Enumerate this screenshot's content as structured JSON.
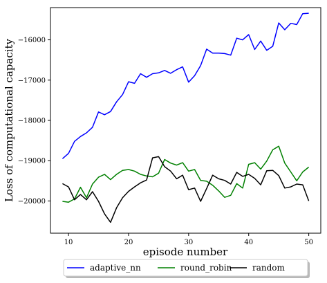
{
  "chart_data": {
    "type": "line",
    "title": "",
    "xlabel": "episode number",
    "ylabel": "Loss of computational capacity",
    "xlim": [
      7,
      52
    ],
    "ylim": [
      -20800,
      -15200
    ],
    "xticks": [
      10,
      20,
      30,
      40,
      50
    ],
    "yticks": [
      -20000,
      -19000,
      -18000,
      -17000,
      -16000
    ],
    "grid": false,
    "legend_position": "bottom-center, below plot",
    "x": [
      9,
      10,
      11,
      12,
      13,
      14,
      15,
      16,
      17,
      18,
      19,
      20,
      21,
      22,
      23,
      24,
      25,
      26,
      27,
      28,
      29,
      30,
      31,
      32,
      33,
      34,
      35,
      36,
      37,
      38,
      39,
      40,
      41,
      42,
      43,
      44,
      45,
      46,
      47,
      48,
      49,
      50
    ],
    "series": [
      {
        "name": "adaptive_nn",
        "color": "#0000ff",
        "values": [
          -18950,
          -18820,
          -18520,
          -18400,
          -18310,
          -18170,
          -17790,
          -17860,
          -17780,
          -17540,
          -17360,
          -17040,
          -17080,
          -16840,
          -16930,
          -16840,
          -16820,
          -16760,
          -16830,
          -16740,
          -16670,
          -17050,
          -16890,
          -16640,
          -16230,
          -16330,
          -16330,
          -16340,
          -16380,
          -15960,
          -16000,
          -15870,
          -16240,
          -16030,
          -16260,
          -16160,
          -15580,
          -15750,
          -15590,
          -15620,
          -15350,
          -15340
        ]
      },
      {
        "name": "round_robin",
        "color": "#008000",
        "values": [
          -20010,
          -20030,
          -19950,
          -19660,
          -19920,
          -19580,
          -19410,
          -19340,
          -19470,
          -19340,
          -19240,
          -19220,
          -19260,
          -19340,
          -19380,
          -19400,
          -19310,
          -18970,
          -19060,
          -19110,
          -19050,
          -19260,
          -19220,
          -19490,
          -19510,
          -19610,
          -19750,
          -19910,
          -19860,
          -19570,
          -19680,
          -19090,
          -19050,
          -19210,
          -19010,
          -18730,
          -18640,
          -19060,
          -19280,
          -19500,
          -19280,
          -19160
        ]
      },
      {
        "name": "random",
        "color": "#000000",
        "values": [
          -19570,
          -19650,
          -19970,
          -19840,
          -19970,
          -19770,
          -20010,
          -20320,
          -20530,
          -20170,
          -19920,
          -19760,
          -19650,
          -19550,
          -19480,
          -18930,
          -18900,
          -19150,
          -19260,
          -19450,
          -19360,
          -19720,
          -19680,
          -20010,
          -19690,
          -19360,
          -19450,
          -19490,
          -19580,
          -19290,
          -19390,
          -19340,
          -19440,
          -19600,
          -19250,
          -19240,
          -19370,
          -19680,
          -19650,
          -19580,
          -19600,
          -20000
        ]
      }
    ]
  }
}
